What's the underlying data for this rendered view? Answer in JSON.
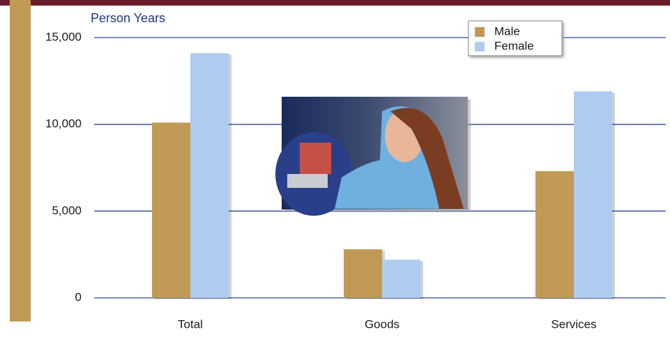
{
  "chart_data": {
    "type": "bar",
    "y_label": "Person Years",
    "categories": [
      "Total",
      "Goods",
      "Services"
    ],
    "series": [
      {
        "name": "Male",
        "color": "#c09a55",
        "values": [
          10100,
          2800,
          7300
        ]
      },
      {
        "name": "Female",
        "color": "#aecbf0",
        "values": [
          14100,
          2200,
          11900
        ]
      }
    ],
    "ylim": [
      0,
      15000
    ],
    "yticks": [
      0,
      {
        "value": 5000,
        "label": "5,000"
      },
      {
        "value": 10000,
        "label": "10,000"
      },
      {
        "value": 15000,
        "label": "15,000"
      }
    ],
    "grid": true,
    "legend": "top-right"
  }
}
